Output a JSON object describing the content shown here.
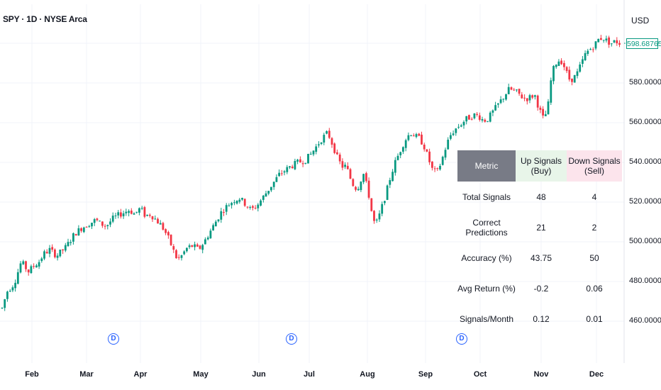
{
  "header": {
    "symbol": "SPY · 1D · NYSE Arca",
    "currency": "USD"
  },
  "last_price": "598.68765",
  "chart_data": {
    "type": "candlestick",
    "yaxis": {
      "ticks": [
        "600.00000",
        "580.00000",
        "560.00000",
        "540.00000",
        "520.00000",
        "500.00000",
        "480.00000",
        "460.00000"
      ]
    },
    "ylim": [
      458,
      607
    ],
    "xaxis": {
      "ticks": [
        "Feb",
        "Mar",
        "Apr",
        "May",
        "Jun",
        "Jul",
        "Aug",
        "Sep",
        "Oct",
        "Nov",
        "Dec"
      ]
    },
    "colors": {
      "up": "#089981",
      "down": "#f23645"
    },
    "close_path": [
      [
        0,
        463
      ],
      [
        10,
        475
      ],
      [
        20,
        479
      ],
      [
        30,
        490
      ],
      [
        40,
        485
      ],
      [
        48,
        488
      ],
      [
        55,
        490
      ],
      [
        62,
        494
      ],
      [
        70,
        496
      ],
      [
        80,
        493
      ],
      [
        92,
        497
      ],
      [
        98,
        500
      ],
      [
        105,
        504
      ],
      [
        115,
        507
      ],
      [
        125,
        509
      ],
      [
        135,
        511
      ],
      [
        142,
        509
      ],
      [
        150,
        508
      ],
      [
        160,
        512
      ],
      [
        170,
        514
      ],
      [
        182,
        516
      ],
      [
        190,
        514
      ],
      [
        198,
        517
      ],
      [
        205,
        513
      ],
      [
        212,
        514
      ],
      [
        220,
        511
      ],
      [
        228,
        508
      ],
      [
        236,
        503
      ],
      [
        244,
        496
      ],
      [
        250,
        491
      ],
      [
        256,
        493
      ],
      [
        264,
        497
      ],
      [
        272,
        498
      ],
      [
        280,
        496
      ],
      [
        288,
        500
      ],
      [
        296,
        505
      ],
      [
        304,
        510
      ],
      [
        312,
        515
      ],
      [
        320,
        518
      ],
      [
        330,
        521
      ],
      [
        338,
        522
      ],
      [
        346,
        519
      ],
      [
        354,
        516
      ],
      [
        362,
        518
      ],
      [
        370,
        522
      ],
      [
        378,
        526
      ],
      [
        386,
        530
      ],
      [
        394,
        534
      ],
      [
        402,
        536
      ],
      [
        410,
        538
      ],
      [
        420,
        540
      ],
      [
        430,
        541
      ],
      [
        438,
        544
      ],
      [
        446,
        548
      ],
      [
        454,
        552
      ],
      [
        462,
        555
      ],
      [
        470,
        548
      ],
      [
        476,
        542
      ],
      [
        482,
        538
      ],
      [
        488,
        538
      ],
      [
        494,
        532
      ],
      [
        500,
        527
      ],
      [
        506,
        528
      ],
      [
        512,
        535
      ],
      [
        518,
        527
      ],
      [
        522,
        520
      ],
      [
        526,
        510
      ],
      [
        532,
        510
      ],
      [
        538,
        517
      ],
      [
        544,
        524
      ],
      [
        550,
        532
      ],
      [
        556,
        539
      ],
      [
        562,
        544
      ],
      [
        568,
        549
      ],
      [
        574,
        553
      ],
      [
        580,
        555
      ],
      [
        586,
        553
      ],
      [
        592,
        552
      ],
      [
        598,
        548
      ],
      [
        604,
        542
      ],
      [
        610,
        536
      ],
      [
        616,
        535
      ],
      [
        622,
        540
      ],
      [
        628,
        547
      ],
      [
        634,
        553
      ],
      [
        640,
        556
      ],
      [
        646,
        558
      ],
      [
        652,
        560
      ],
      [
        658,
        562
      ],
      [
        664,
        563
      ],
      [
        670,
        564
      ],
      [
        676,
        563
      ],
      [
        682,
        561
      ],
      [
        688,
        562
      ],
      [
        694,
        565
      ],
      [
        700,
        568
      ],
      [
        706,
        571
      ],
      [
        712,
        574
      ],
      [
        718,
        577
      ],
      [
        724,
        576
      ],
      [
        730,
        575
      ],
      [
        736,
        573
      ],
      [
        742,
        572
      ],
      [
        748,
        573
      ],
      [
        754,
        574
      ],
      [
        760,
        567
      ],
      [
        766,
        562
      ],
      [
        772,
        566
      ],
      [
        778,
        585
      ],
      [
        784,
        590
      ],
      [
        790,
        592
      ],
      [
        796,
        588
      ],
      [
        802,
        582
      ],
      [
        808,
        582
      ],
      [
        814,
        585
      ],
      [
        820,
        590
      ],
      [
        826,
        595
      ],
      [
        832,
        597
      ],
      [
        838,
        599
      ],
      [
        844,
        602
      ],
      [
        850,
        603
      ],
      [
        856,
        601
      ],
      [
        862,
        600
      ],
      [
        868,
        601
      ],
      [
        874,
        600
      ],
      [
        878,
        599
      ]
    ],
    "dividend_markers": [
      "D",
      "D",
      "D"
    ]
  },
  "signals_table": {
    "headers": [
      "Metric",
      "Up Signals (Buy)",
      "Down Signals (Sell)"
    ],
    "rows": [
      {
        "metric": "Total Signals",
        "up": "48",
        "down": "4"
      },
      {
        "metric": "Correct Predictions",
        "up": "21",
        "down": "2"
      },
      {
        "metric": "Accuracy (%)",
        "up": "43.75",
        "down": "50"
      },
      {
        "metric": "Avg Return (%)",
        "up": "-0.2",
        "down": "0.06"
      },
      {
        "metric": "Signals/Month",
        "up": "0.12",
        "down": "0.01"
      }
    ]
  }
}
